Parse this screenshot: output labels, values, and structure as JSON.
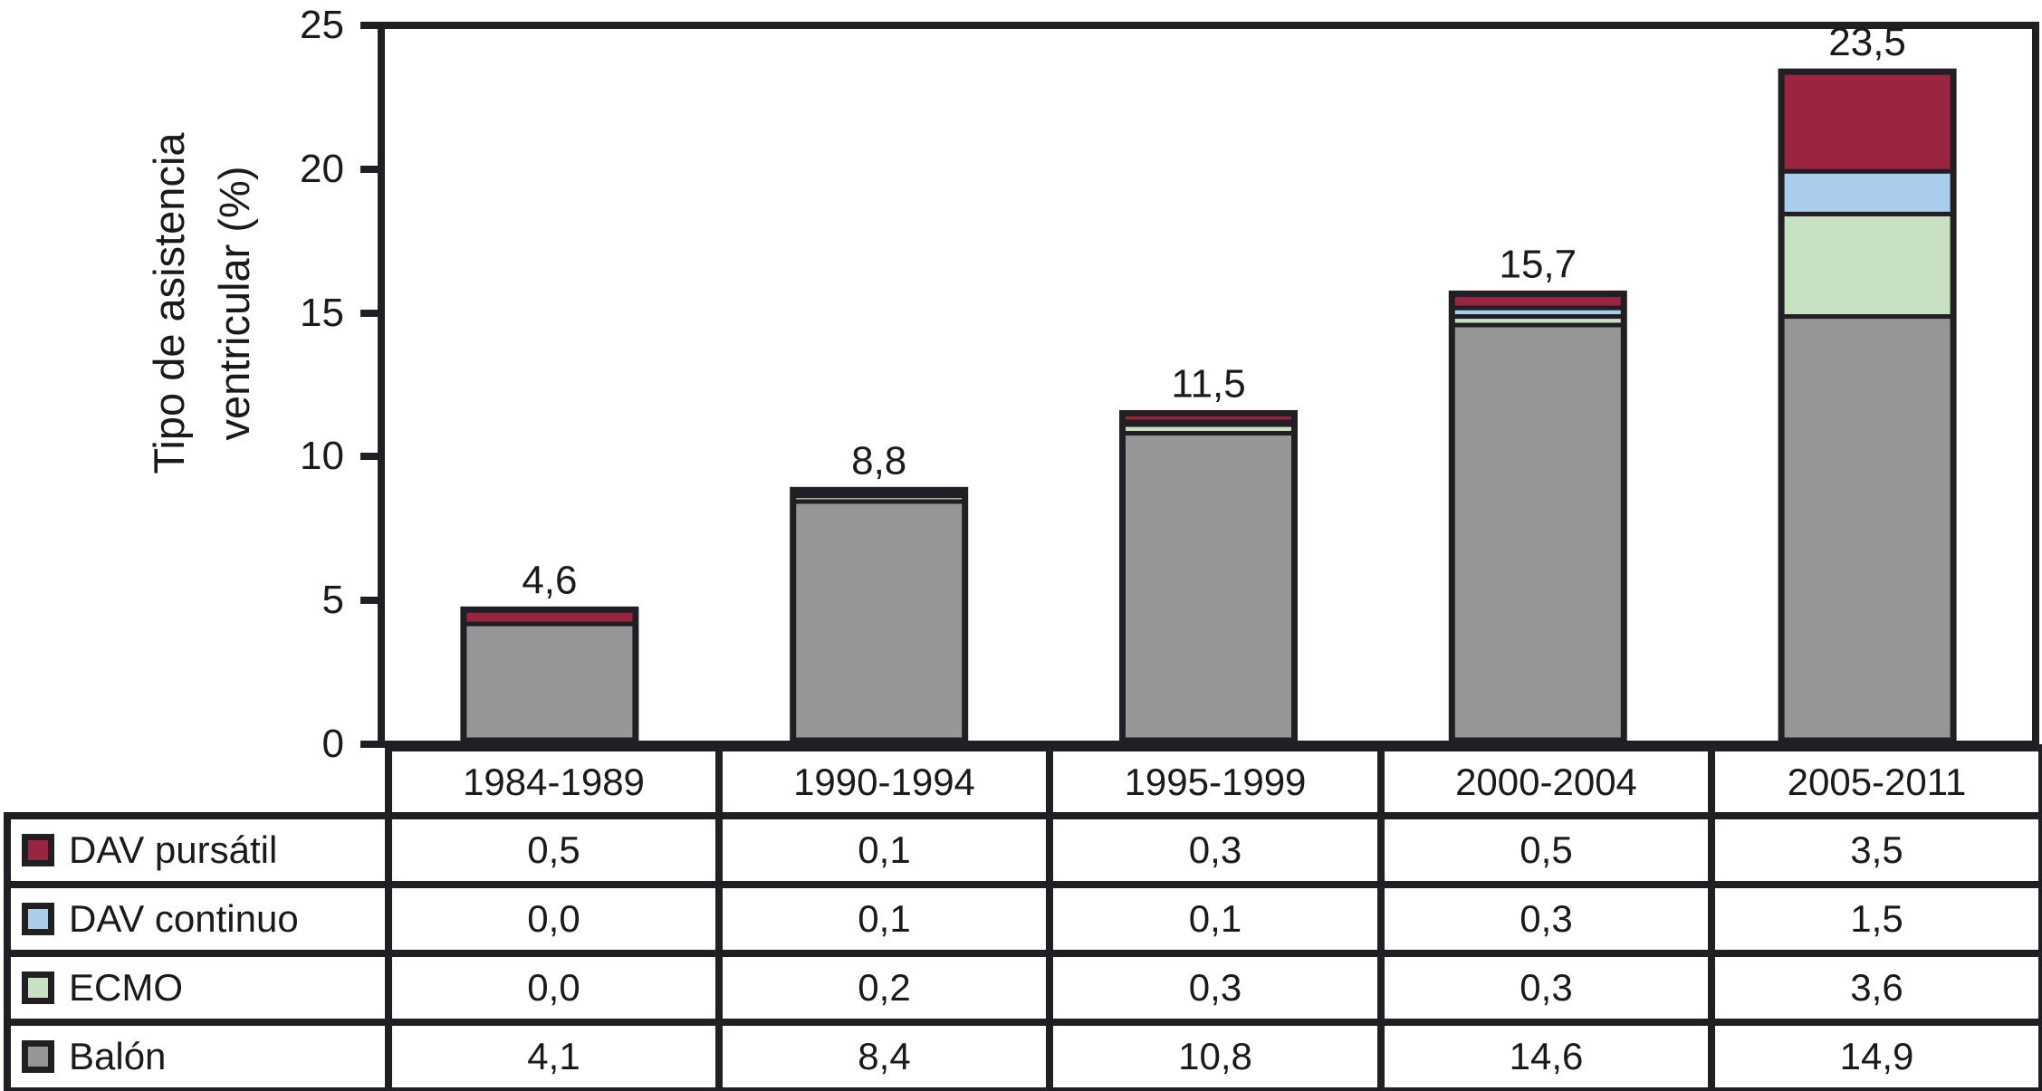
{
  "y_axis": {
    "title_line1": "Tipo de asistencia",
    "title_line2": "ventricular (%)",
    "tick_labels": [
      "0",
      "5",
      "10",
      "15",
      "20",
      "25"
    ],
    "tick_values": [
      0,
      5,
      10,
      15,
      20,
      25
    ]
  },
  "chart_data": {
    "type": "bar",
    "subtype": "stacked-vertical-with-data-table",
    "categories": [
      "1984-1989",
      "1990-1994",
      "1995-1999",
      "2000-2004",
      "2005-2011"
    ],
    "series": [
      {
        "name": "DAV pursátil",
        "color": "#9b2440",
        "values": [
          0.5,
          0.1,
          0.3,
          0.5,
          3.5
        ],
        "values_display": [
          "0,5",
          "0,1",
          "0,3",
          "0,5",
          "3,5"
        ]
      },
      {
        "name": "DAV continuo",
        "color": "#abcdec",
        "values": [
          0.0,
          0.1,
          0.1,
          0.3,
          1.5
        ],
        "values_display": [
          "0,0",
          "0,1",
          "0,1",
          "0,3",
          "1,5"
        ]
      },
      {
        "name": "ECMO",
        "color": "#c7e1c2",
        "values": [
          0.0,
          0.2,
          0.3,
          0.3,
          3.6
        ],
        "values_display": [
          "0,0",
          "0,2",
          "0,3",
          "0,3",
          "3,6"
        ]
      },
      {
        "name": "Balón",
        "color": "#969696",
        "values": [
          4.1,
          8.4,
          10.8,
          14.6,
          14.9
        ],
        "values_display": [
          "4,1",
          "8,4",
          "10,8",
          "14,6",
          "14,9"
        ]
      }
    ],
    "stack_order_bottom_up": [
      "Balón",
      "ECMO",
      "DAV continuo",
      "DAV pursátil"
    ],
    "totals": [
      4.6,
      8.8,
      11.5,
      15.7,
      23.5
    ],
    "total_labels": [
      "4,6",
      "8,8",
      "11,5",
      "15,7",
      "23,5"
    ],
    "ylabel": "Tipo de asistencia ventricular (%)",
    "xlabel": "",
    "ylim": [
      0,
      25
    ],
    "grid": false,
    "legend_position": "table-left-column",
    "decimal_separator": ","
  },
  "colors": {
    "line": "#221f24",
    "text": "#1a1a1a",
    "background": "#ffffff"
  }
}
